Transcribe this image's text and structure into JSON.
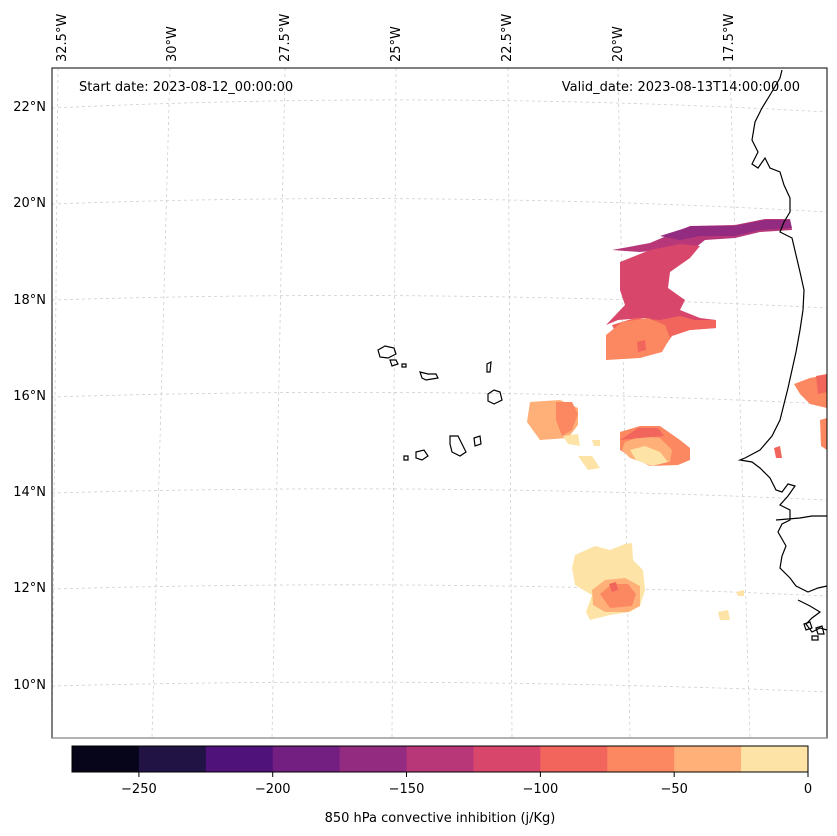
{
  "header": {
    "start_date": "Start date: 2023-08-12_00:00:00",
    "valid_date": "Valid_date: 2023-08-13T14:00:00.00"
  },
  "longitude_labels": [
    "32.5°W",
    "30°W",
    "27.5°W",
    "25°W",
    "22.5°W",
    "20°W",
    "17.5°W"
  ],
  "latitude_labels": [
    "22°N",
    "20°N",
    "18°N",
    "16°N",
    "14°N",
    "12°N",
    "10°N"
  ],
  "colorbar": {
    "label": "850 hPa convective inhibition (j/Kg)",
    "tick_labels": [
      "−250",
      "−200",
      "−150",
      "−100",
      "−50",
      "0"
    ],
    "colors": [
      "#06051a",
      "#211445",
      "#4f127b",
      "#721f81",
      "#932b80",
      "#b73779",
      "#d9466b",
      "#f2655c",
      "#fb8861",
      "#feb078",
      "#fde4a6"
    ]
  },
  "colors": {
    "gridline": "#cccccc",
    "coastline": "#000000",
    "frame": "#000000"
  }
}
